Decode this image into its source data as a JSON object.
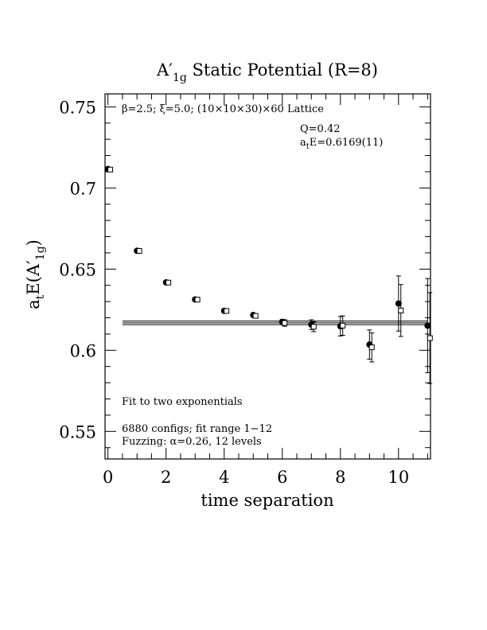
{
  "chart_data": {
    "type": "scatter",
    "title_main": "A",
    "title_prime": "′",
    "title_sub": "1g",
    "title_rest": " Static Potential (R=8)",
    "xlabel": "time separation",
    "ylabel": "E(A′",
    "ylabel_prefix": "a",
    "ylabel_prefix_sub": "t",
    "ylabel_sub": "1g",
    "ylabel_close": ")",
    "xlim": [
      -0.1,
      11.1
    ],
    "ylim": [
      0.533,
      0.758
    ],
    "xticks": [
      0,
      2,
      4,
      6,
      8,
      10
    ],
    "xtick_labels": [
      "0",
      "2",
      "4",
      "6",
      "8",
      "10"
    ],
    "yticks": [
      0.55,
      0.6,
      0.65,
      0.7,
      0.75
    ],
    "ytick_labels": [
      "0.55",
      "0.6",
      "0.65",
      "0.7",
      "0.75"
    ],
    "annotations": {
      "lattice": "β=2.5; ξ=5.0; (10×10×30)×60 Lattice",
      "q": "Q=0.42",
      "energy_prefix": "a",
      "energy_sub": "t",
      "energy_rest": "E=0.6169(11)",
      "fit": "Fit to two exponentials",
      "configs": "6880 configs; fit range 1−12",
      "fuzzing": "Fuzzing: α=0.26, 12 levels"
    },
    "fit_band": {
      "x": [
        0.5,
        11.0
      ],
      "center": 0.6169,
      "error": 0.0011
    },
    "series": [
      {
        "marker": "filled-circle",
        "x": [
          0,
          1,
          2,
          3,
          4,
          5,
          6,
          7,
          8,
          9,
          10,
          11
        ],
        "y": [
          0.7117,
          0.6613,
          0.6418,
          0.6313,
          0.6243,
          0.6217,
          0.6175,
          0.6158,
          0.6148,
          0.6035,
          0.6288,
          0.6152
        ],
        "err": [
          0.0008,
          0.0008,
          0.0008,
          0.0008,
          0.0009,
          0.001,
          0.0015,
          0.003,
          0.006,
          0.009,
          0.017,
          0.029
        ]
      },
      {
        "marker": "open-square",
        "x": [
          0.08,
          1.08,
          2.08,
          3.08,
          4.08,
          5.08,
          6.08,
          7.08,
          8.08,
          9.08,
          10.08,
          11.08
        ],
        "y": [
          0.7113,
          0.6612,
          0.6417,
          0.6312,
          0.6242,
          0.6212,
          0.6168,
          0.6145,
          0.6152,
          0.6018,
          0.6245,
          0.6075
        ],
        "err": [
          0.0008,
          0.0008,
          0.0008,
          0.0008,
          0.0009,
          0.001,
          0.002,
          0.003,
          0.006,
          0.009,
          0.016,
          0.028
        ]
      }
    ]
  }
}
